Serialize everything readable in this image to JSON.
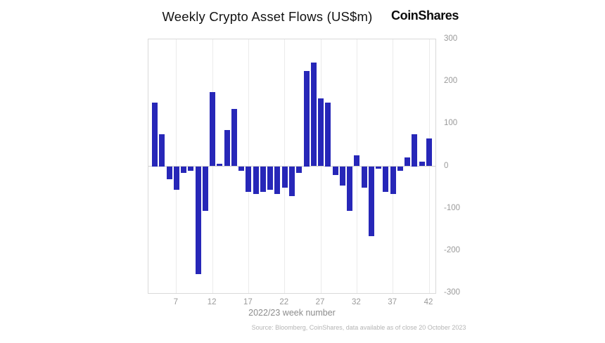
{
  "header": {
    "title": "Weekly Crypto Asset Flows (US$m)",
    "brand": "CoinShares"
  },
  "footer": {
    "source": "Source: Bloomberg, CoinShares, data available as of close 20 October 2023"
  },
  "colors": {
    "bar": "#2727b8",
    "grid": "#ebebeb",
    "zero_line": "#cfcfcf",
    "axis_text": "#9a9a9a"
  },
  "chart_data": {
    "type": "bar",
    "title": "Weekly Crypto Asset Flows (US$m)",
    "xlabel": "2022/23 week number",
    "ylabel": "",
    "x": [
      4,
      5,
      6,
      7,
      8,
      9,
      10,
      11,
      12,
      13,
      14,
      15,
      16,
      17,
      18,
      19,
      20,
      21,
      22,
      23,
      24,
      25,
      26,
      27,
      28,
      29,
      30,
      31,
      32,
      33,
      34,
      35,
      36,
      37,
      38,
      39,
      40,
      41,
      42
    ],
    "values": [
      150,
      75,
      -30,
      -55,
      -15,
      -10,
      -255,
      -105,
      175,
      5,
      85,
      135,
      -10,
      -60,
      -65,
      -60,
      -55,
      -65,
      -50,
      -70,
      -15,
      225,
      245,
      160,
      150,
      -20,
      -45,
      -105,
      25,
      -50,
      -165,
      -5,
      -60,
      -65,
      -10,
      20,
      75,
      10,
      65
    ],
    "xticks": [
      7,
      12,
      17,
      22,
      27,
      32,
      37,
      42
    ],
    "yticks": [
      300,
      200,
      100,
      0,
      -100,
      -200,
      -300
    ],
    "ylim": [
      -300,
      300
    ],
    "grid": true,
    "legend": "none",
    "y_axis_side": "right",
    "bar_color": "#2727b8"
  }
}
